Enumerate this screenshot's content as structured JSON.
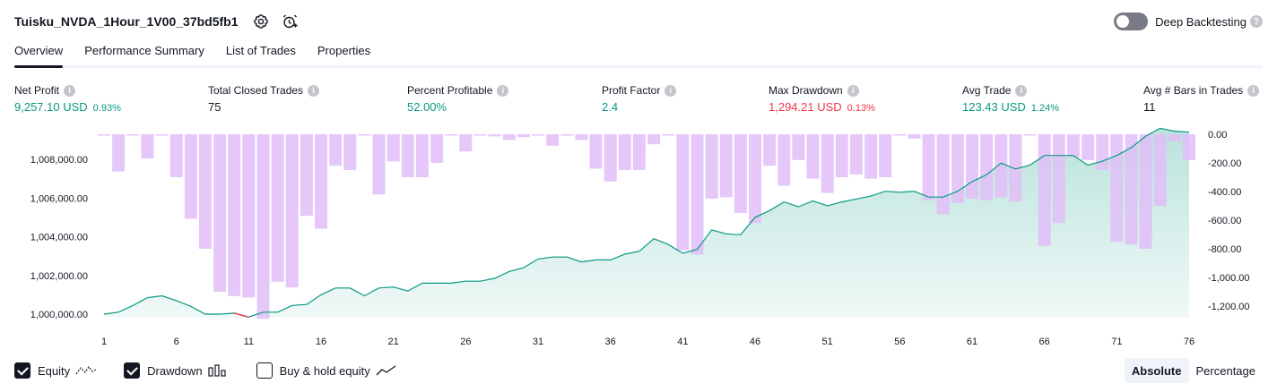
{
  "header": {
    "strategy_name": "Tuisku_NVDA_1Hour_1V00_37bd5fb1",
    "settings_icon": "gear-icon",
    "alert_icon": "alarm-clock-add-icon",
    "deep_backtesting_label": "Deep Backtesting",
    "deep_backtesting_enabled": false
  },
  "tabs": [
    {
      "label": "Overview",
      "active": true
    },
    {
      "label": "Performance Summary",
      "active": false
    },
    {
      "label": "List of Trades",
      "active": false
    },
    {
      "label": "Properties",
      "active": false
    }
  ],
  "metrics": [
    {
      "label": "Net Profit",
      "value": "9,257.10 USD",
      "pct": "0.93%",
      "color": "green"
    },
    {
      "label": "Total Closed Trades",
      "value": "75",
      "pct": "",
      "color": "dark"
    },
    {
      "label": "Percent Profitable",
      "value": "52.00%",
      "pct": "",
      "color": "green"
    },
    {
      "label": "Profit Factor",
      "value": "2.4",
      "pct": "",
      "color": "green"
    },
    {
      "label": "Max Drawdown",
      "value": "1,294.21 USD",
      "pct": "0.13%",
      "color": "red"
    },
    {
      "label": "Avg Trade",
      "value": "123.43 USD",
      "pct": "1.24%",
      "color": "green"
    },
    {
      "label": "Avg # Bars in Trades",
      "value": "11",
      "pct": "",
      "color": "dark"
    }
  ],
  "chart_data": {
    "type": "line",
    "series": [
      {
        "name": "Equity",
        "color": "#089981",
        "x": [
          1,
          2,
          3,
          4,
          5,
          6,
          7,
          8,
          9,
          10,
          11,
          12,
          13,
          14,
          15,
          16,
          17,
          18,
          19,
          20,
          21,
          22,
          23,
          24,
          25,
          26,
          27,
          28,
          29,
          30,
          31,
          32,
          33,
          34,
          35,
          36,
          37,
          38,
          39,
          40,
          41,
          42,
          43,
          44,
          45,
          46,
          47,
          48,
          49,
          50,
          51,
          52,
          53,
          54,
          55,
          56,
          57,
          58,
          59,
          60,
          61,
          62,
          63,
          64,
          65,
          66,
          67,
          68,
          69,
          70,
          71,
          72,
          73,
          74,
          75,
          76
        ],
        "values": [
          1000000,
          1000100,
          1000450,
          1000850,
          1000950,
          1000700,
          1000400,
          1000000,
          1000000,
          1000050,
          999850,
          1000100,
          1000100,
          1000450,
          1000500,
          1001000,
          1001350,
          1001350,
          1000950,
          1001350,
          1001400,
          1001200,
          1001600,
          1001600,
          1001600,
          1001700,
          1001700,
          1001850,
          1002200,
          1002400,
          1002850,
          1002950,
          1002950,
          1002700,
          1002800,
          1002800,
          1003100,
          1003250,
          1003900,
          1003600,
          1003150,
          1003350,
          1004350,
          1004150,
          1004100,
          1005000,
          1005350,
          1005800,
          1005550,
          1005850,
          1005600,
          1005800,
          1005950,
          1006100,
          1006350,
          1006300,
          1006350,
          1006050,
          1006050,
          1006350,
          1006850,
          1007200,
          1007800,
          1007500,
          1007700,
          1008200,
          1008200,
          1008200,
          1007700,
          1007900,
          1008200,
          1008600,
          1009200,
          1009600,
          1009450,
          1009400
        ]
      },
      {
        "name": "Drawdown",
        "color": "#e1bef8",
        "x": [
          1,
          2,
          3,
          4,
          5,
          6,
          7,
          8,
          9,
          10,
          11,
          12,
          13,
          14,
          15,
          16,
          17,
          18,
          19,
          20,
          21,
          22,
          23,
          24,
          25,
          26,
          27,
          28,
          29,
          30,
          31,
          32,
          33,
          34,
          35,
          36,
          37,
          38,
          39,
          40,
          41,
          42,
          43,
          44,
          45,
          46,
          47,
          48,
          49,
          50,
          51,
          52,
          53,
          54,
          55,
          56,
          57,
          58,
          59,
          60,
          61,
          62,
          63,
          64,
          65,
          66,
          67,
          68,
          69,
          70,
          71,
          72,
          73,
          74,
          75,
          76
        ],
        "values": [
          -5,
          -260,
          -5,
          -170,
          -10,
          -300,
          -590,
          -800,
          -1100,
          -1130,
          -1140,
          -1290,
          -1030,
          -1070,
          -570,
          -660,
          -220,
          -250,
          -5,
          -420,
          -190,
          -300,
          -300,
          -200,
          -5,
          -120,
          -5,
          -15,
          -40,
          -20,
          -10,
          -80,
          -10,
          -40,
          -240,
          -330,
          -250,
          -250,
          -70,
          -5,
          -810,
          -840,
          -450,
          -440,
          -550,
          -620,
          -220,
          -360,
          -180,
          -310,
          -410,
          -300,
          -280,
          -310,
          -300,
          -5,
          -30,
          -460,
          -560,
          -480,
          -450,
          -460,
          -440,
          -470,
          -5,
          -780,
          -620,
          -160,
          -180,
          -250,
          -750,
          -770,
          -800,
          -500,
          -50,
          -180
        ]
      }
    ],
    "x_ticks": [
      1,
      6,
      11,
      16,
      21,
      26,
      31,
      36,
      41,
      46,
      51,
      56,
      61,
      66,
      71,
      76
    ],
    "y_left_ticks": [
      "1,000,000.00",
      "1,002,000.00",
      "1,004,000.00",
      "1,006,000.00",
      "1,008,000.00"
    ],
    "y_right_ticks": [
      "0.00",
      "-200.00",
      "-400.00",
      "-600.00",
      "-800.00",
      "-1,000.00",
      "-1,200.00"
    ],
    "y_left_range": [
      999600,
      1009600
    ],
    "y_right_range": [
      -1300,
      0
    ],
    "grid": false
  },
  "legend": {
    "equity_label": "Equity",
    "equity_checked": true,
    "drawdown_label": "Drawdown",
    "drawdown_checked": true,
    "buyhold_label": "Buy & hold equity",
    "buyhold_checked": false
  },
  "mode": {
    "absolute_label": "Absolute",
    "percentage_label": "Percentage",
    "active": "Absolute"
  }
}
